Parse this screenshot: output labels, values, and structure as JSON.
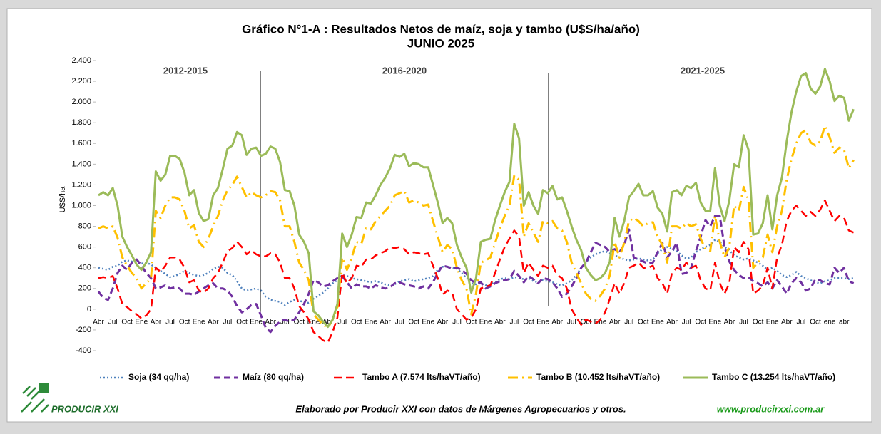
{
  "chart_data": {
    "type": "line",
    "title": "Gráfico N°1-A : Resultados Netos de maíz, soja y tambo (U$S/ha/año)",
    "subtitle": "JUNIO 2025",
    "y_label": "U$S/ha",
    "period_labels": [
      "2012-2015",
      "2016-2020",
      "2021-2025"
    ],
    "categories": [
      "Abr",
      null,
      null,
      "Jul",
      null,
      null,
      "Oct",
      null,
      null,
      "Ene",
      null,
      null,
      "Abr",
      null,
      null,
      "Jul",
      null,
      null,
      "Oct",
      null,
      null,
      "Ene",
      null,
      null,
      "Abr",
      null,
      null,
      "Jul",
      null,
      null,
      "Oct",
      null,
      null,
      "Ene",
      null,
      null,
      "Abr",
      null,
      null,
      "Jul",
      null,
      null,
      "Oct",
      null,
      null,
      "Ene",
      null,
      null,
      "Abr",
      null,
      null,
      "Jul",
      null,
      null,
      "Oct",
      null,
      null,
      "Ene",
      null,
      null,
      "Abr",
      null,
      null,
      "Jul",
      null,
      null,
      "Oct",
      null,
      null,
      "Ene",
      null,
      null,
      "Abr",
      null,
      null,
      "Jul",
      null,
      null,
      "Oct",
      null,
      null,
      "Ene",
      null,
      null,
      "Abr",
      null,
      null,
      "Jul",
      null,
      null,
      "Oct",
      null,
      null,
      "Ene",
      null,
      null,
      "Abr",
      null,
      null,
      "Jul",
      null,
      null,
      "Oct",
      null,
      null,
      "Ene",
      null,
      null,
      "Abr",
      null,
      null,
      "Jul",
      null,
      null,
      "Oct",
      null,
      null,
      "Ene",
      null,
      null,
      "Abr",
      null,
      null,
      "Jul",
      null,
      null,
      "Oct",
      null,
      null,
      "Ene",
      null,
      null,
      "Abr",
      null,
      null,
      "Jul",
      null,
      null,
      "Oct",
      null,
      null,
      "Ene",
      null,
      null,
      "Abr",
      null,
      null,
      "Jul",
      null,
      null,
      "Oct",
      null,
      null,
      "ene",
      null,
      null,
      "abr",
      null,
      null
    ],
    "ylim": [
      -400,
      2400
    ],
    "yticks": [
      -400,
      -200,
      0,
      200,
      400,
      600,
      800,
      {
        "value": 1000,
        "label": "1.000"
      },
      {
        "value": 1200,
        "label": "1.200"
      },
      {
        "value": 1400,
        "label": "1.400"
      },
      {
        "value": 1600,
        "label": "1.600"
      },
      {
        "value": 1800,
        "label": "1.800"
      },
      {
        "value": 2000,
        "label": "2.000"
      },
      {
        "value": 2200,
        "label": "2.200"
      },
      {
        "value": 2400,
        "label": "2.400"
      }
    ],
    "grid": false,
    "series": [
      {
        "name": "Soja (34 qq/ha)",
        "color": "#4f81bd",
        "values": [
          400,
          390,
          380,
          410,
          420,
          460,
          470,
          460,
          450,
          440,
          450,
          430,
          400,
          370,
          340,
          310,
          320,
          340,
          370,
          350,
          330,
          320,
          330,
          350,
          390,
          410,
          400,
          350,
          330,
          270,
          200,
          180,
          190,
          200,
          180,
          120,
          90,
          80,
          70,
          40,
          70,
          90,
          80,
          70,
          60,
          100,
          130,
          160,
          200,
          250,
          280,
          330,
          320,
          300,
          290,
          280,
          270,
          260,
          270,
          260,
          240,
          230,
          240,
          270,
          280,
          290,
          270,
          280,
          290,
          300,
          320,
          380,
          410,
          410,
          400,
          390,
          350,
          300,
          250,
          240,
          250,
          230,
          240,
          260,
          290,
          300,
          290,
          310,
          300,
          290,
          300,
          270,
          260,
          280,
          270,
          260,
          240,
          230,
          250,
          280,
          330,
          400,
          450,
          500,
          530,
          550,
          560,
          540,
          520,
          500,
          480,
          470,
          480,
          490,
          480,
          470,
          480,
          540,
          580,
          600,
          580,
          560,
          520,
          490,
          500,
          550,
          580,
          600,
          620,
          670,
          650,
          600,
          570,
          520,
          500,
          480,
          490,
          470,
          450,
          420,
          380,
          400,
          370,
          330,
          310,
          330,
          360,
          320,
          300,
          280,
          260,
          250,
          270,
          280,
          300,
          300,
          300,
          290,
          300
        ]
      },
      {
        "name": "Maíz (80 qq/ha)",
        "color": "#7030a0",
        "values": [
          170,
          110,
          90,
          200,
          350,
          420,
          380,
          450,
          480,
          420,
          350,
          300,
          200,
          210,
          230,
          200,
          210,
          200,
          150,
          150,
          140,
          170,
          200,
          230,
          250,
          200,
          200,
          180,
          120,
          30,
          -30,
          0,
          40,
          50,
          -60,
          -180,
          -220,
          -160,
          -120,
          -100,
          -120,
          -100,
          -30,
          50,
          150,
          280,
          260,
          220,
          230,
          270,
          300,
          320,
          260,
          200,
          240,
          220,
          220,
          200,
          230,
          210,
          200,
          210,
          250,
          260,
          240,
          230,
          220,
          200,
          220,
          200,
          260,
          350,
          420,
          410,
          390,
          400,
          380,
          340,
          280,
          250,
          260,
          200,
          220,
          250,
          270,
          280,
          290,
          370,
          320,
          260,
          320,
          290,
          250,
          300,
          290,
          260,
          200,
          120,
          150,
          220,
          300,
          400,
          450,
          550,
          640,
          620,
          600,
          550,
          580,
          550,
          620,
          770,
          500,
          480,
          460,
          440,
          450,
          550,
          640,
          500,
          560,
          640,
          340,
          350,
          400,
          560,
          700,
          860,
          800,
          900,
          900,
          600,
          460,
          380,
          330,
          300,
          310,
          270,
          250,
          220,
          260,
          200,
          280,
          220,
          150,
          250,
          300,
          260,
          180,
          200,
          290,
          280,
          250,
          240,
          400,
          350,
          400,
          270,
          250
        ]
      },
      {
        "name": "Tambo A (7.574 lts/haVT/año)",
        "color": "#ff0000",
        "values": [
          300,
          310,
          300,
          320,
          200,
          50,
          20,
          -20,
          -50,
          -90,
          -60,
          0,
          400,
          360,
          420,
          500,
          500,
          480,
          400,
          260,
          280,
          180,
          160,
          200,
          300,
          350,
          450,
          560,
          590,
          650,
          600,
          530,
          570,
          530,
          510,
          510,
          540,
          530,
          450,
          300,
          300,
          200,
          30,
          -30,
          -100,
          -220,
          -260,
          -300,
          -320,
          -220,
          -80,
          350,
          250,
          300,
          420,
          410,
          480,
          480,
          520,
          540,
          560,
          600,
          590,
          600,
          580,
          530,
          550,
          540,
          530,
          540,
          420,
          300,
          140,
          180,
          160,
          0,
          -50,
          -100,
          -80,
          0,
          200,
          220,
          230,
          350,
          480,
          600,
          680,
          760,
          700,
          350,
          450,
          380,
          320,
          420,
          400,
          420,
          330,
          300,
          200,
          0,
          -80,
          -150,
          -100,
          -120,
          -140,
          -100,
          -30,
          100,
          250,
          150,
          250,
          400,
          420,
          450,
          400,
          400,
          420,
          300,
          250,
          150,
          350,
          400,
          380,
          450,
          400,
          420,
          280,
          200,
          180,
          450,
          250,
          150,
          250,
          600,
          550,
          650,
          580,
          150,
          180,
          230,
          400,
          200,
          500,
          620,
          850,
          950,
          1000,
          950,
          900,
          940,
          900,
          960,
          1050,
          950,
          850,
          900,
          880,
          760,
          740
        ]
      },
      {
        "name": "Tambo B (10.452 lts/haVT/año)",
        "color": "#ffc000",
        "values": [
          780,
          800,
          780,
          800,
          690,
          500,
          420,
          350,
          300,
          200,
          250,
          300,
          950,
          880,
          1000,
          1080,
          1080,
          1060,
          950,
          780,
          810,
          650,
          600,
          680,
          800,
          900,
          1050,
          1150,
          1200,
          1280,
          1180,
          1080,
          1130,
          1100,
          1080,
          1100,
          1140,
          1130,
          1050,
          800,
          800,
          650,
          450,
          380,
          280,
          -50,
          -100,
          -150,
          -180,
          -100,
          20,
          500,
          380,
          500,
          650,
          630,
          780,
          770,
          850,
          900,
          950,
          1000,
          1100,
          1120,
          1140,
          1030,
          1050,
          1030,
          1000,
          1010,
          850,
          700,
          550,
          620,
          580,
          400,
          280,
          200,
          -50,
          150,
          450,
          470,
          500,
          640,
          780,
          900,
          1000,
          1290,
          1250,
          700,
          830,
          740,
          650,
          850,
          830,
          850,
          780,
          760,
          650,
          450,
          350,
          250,
          150,
          100,
          80,
          130,
          200,
          330,
          650,
          500,
          640,
          850,
          880,
          850,
          800,
          830,
          840,
          700,
          620,
          450,
          800,
          800,
          780,
          830,
          800,
          820,
          680,
          580,
          560,
          900,
          650,
          500,
          600,
          1000,
          950,
          1180,
          1050,
          400,
          450,
          500,
          720,
          550,
          800,
          950,
          1250,
          1450,
          1600,
          1700,
          1730,
          1610,
          1580,
          1620,
          1770,
          1660,
          1510,
          1560,
          1540,
          1360,
          1440
        ]
      },
      {
        "name": "Tambo C (13.254 lts/haVT/año)",
        "color": "#9bbb59",
        "values": [
          1100,
          1130,
          1100,
          1170,
          1000,
          700,
          600,
          520,
          430,
          380,
          450,
          550,
          1330,
          1240,
          1300,
          1480,
          1480,
          1450,
          1320,
          1100,
          1150,
          930,
          850,
          870,
          1100,
          1170,
          1350,
          1550,
          1580,
          1710,
          1680,
          1490,
          1550,
          1560,
          1480,
          1500,
          1570,
          1550,
          1420,
          1150,
          1140,
          1000,
          720,
          650,
          540,
          -20,
          -60,
          -120,
          -170,
          -100,
          50,
          730,
          600,
          720,
          890,
          880,
          1030,
          1020,
          1100,
          1200,
          1270,
          1360,
          1490,
          1470,
          1500,
          1380,
          1410,
          1400,
          1370,
          1370,
          1200,
          1030,
          830,
          880,
          830,
          620,
          500,
          400,
          160,
          300,
          650,
          670,
          680,
          860,
          1000,
          1130,
          1230,
          1790,
          1650,
          1000,
          1130,
          1000,
          920,
          1150,
          1120,
          1190,
          1060,
          1080,
          950,
          800,
          670,
          570,
          400,
          330,
          280,
          300,
          350,
          460,
          880,
          700,
          850,
          1080,
          1140,
          1210,
          1100,
          1100,
          1140,
          980,
          920,
          750,
          1130,
          1150,
          1100,
          1190,
          1170,
          1220,
          1030,
          950,
          950,
          1360,
          1000,
          850,
          1050,
          1400,
          1370,
          1680,
          1540,
          720,
          730,
          830,
          1100,
          770,
          1100,
          1270,
          1620,
          1900,
          2100,
          2250,
          2280,
          2130,
          2080,
          2150,
          2320,
          2200,
          2010,
          2060,
          2040,
          1820,
          1930
        ]
      }
    ]
  },
  "footer": {
    "logo": "PRODUCIR XXI",
    "note": "Elaborado por Producir XXI con datos de Márgenes Agropecuarios y otros.",
    "url": "www.producirxxi.com.ar"
  }
}
